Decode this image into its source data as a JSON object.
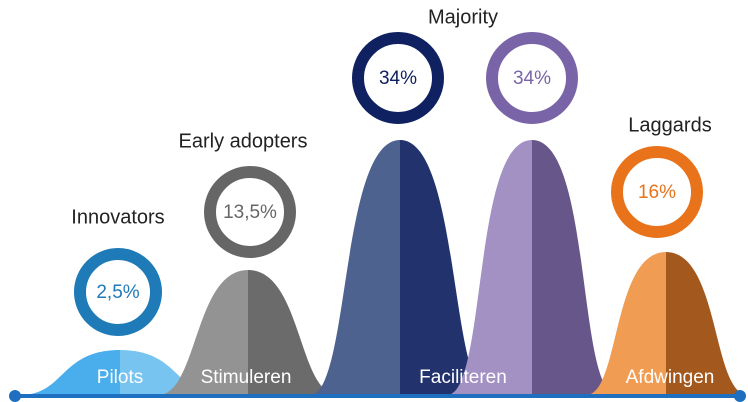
{
  "groups": [
    {
      "title": "Innovators",
      "rings": [
        "2,5%"
      ]
    },
    {
      "title": "Early adopters",
      "rings": [
        "13,5%"
      ]
    },
    {
      "title": "Majority",
      "rings": [
        "34%",
        "34%"
      ]
    },
    {
      "title": "Laggards",
      "rings": [
        "16%"
      ]
    }
  ],
  "phases": [
    "Pilots",
    "Stimuleren",
    "Faciliteren",
    "Afdwingen"
  ]
}
